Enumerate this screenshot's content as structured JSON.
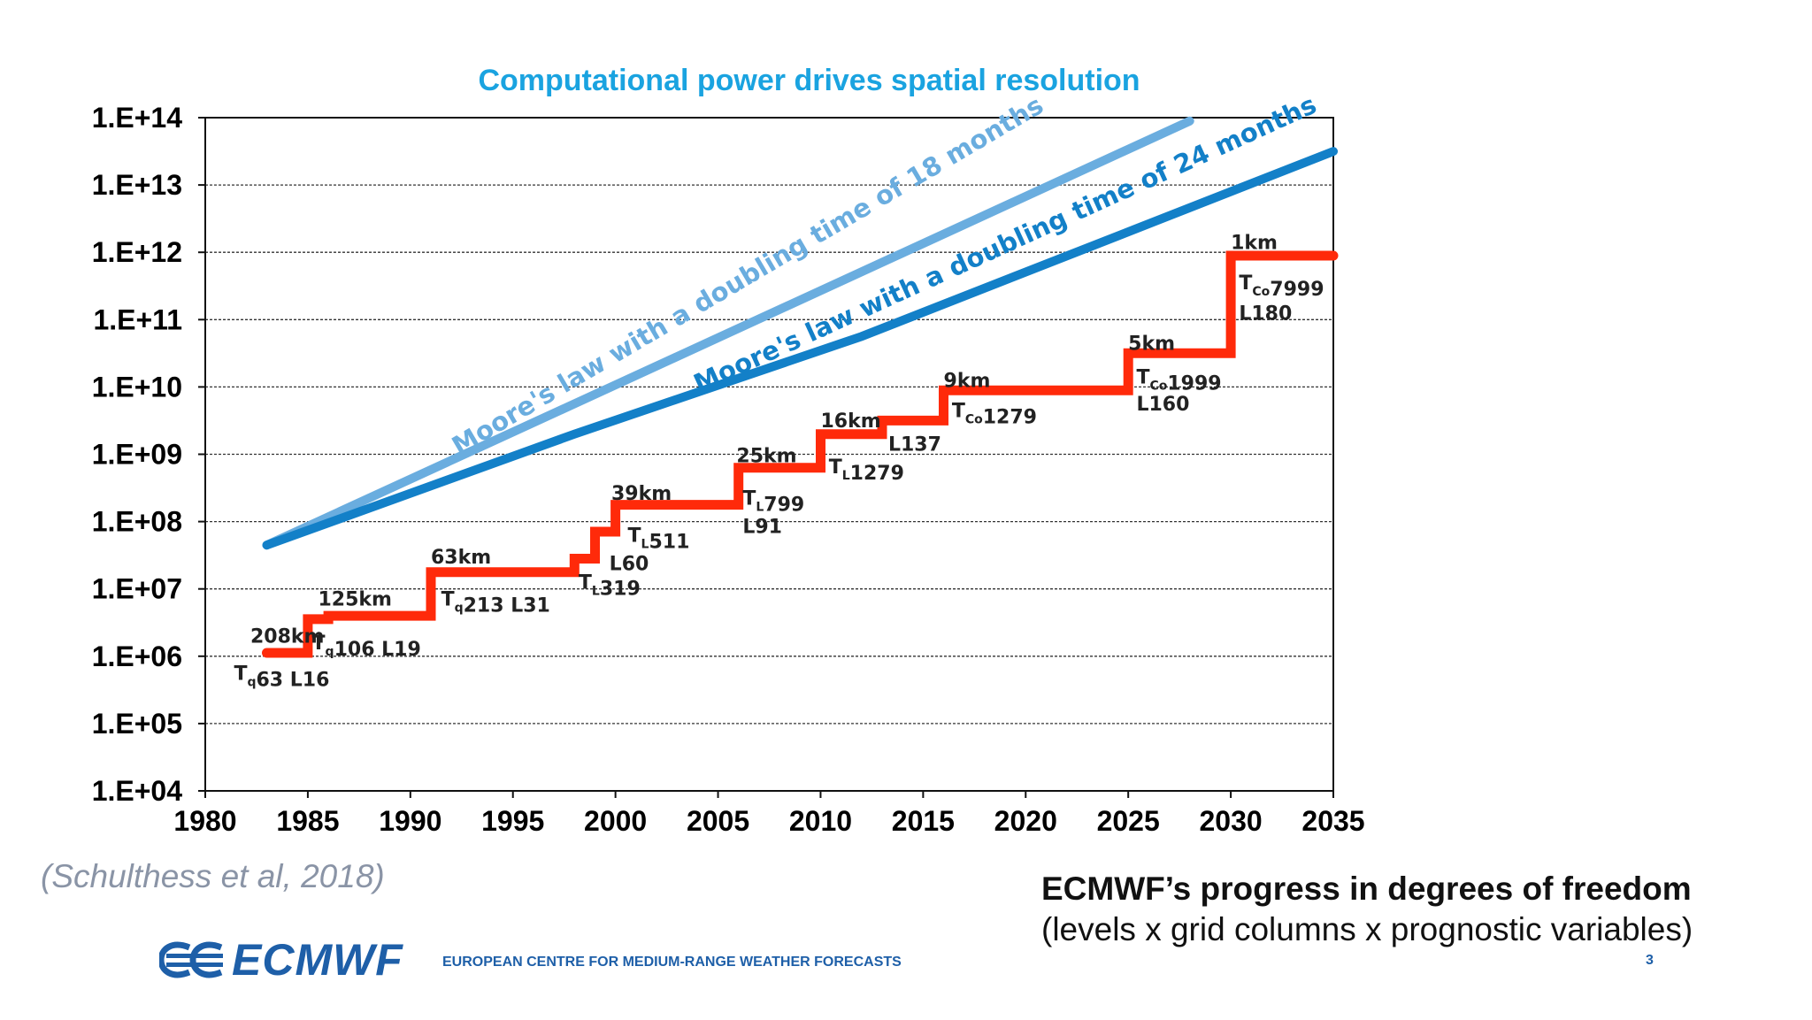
{
  "chart_data": {
    "type": "line",
    "title": "Computational power drives spatial resolution",
    "xlabel": "",
    "ylabel": "",
    "y_scale": "log10",
    "xlim": [
      1980,
      2035
    ],
    "ylim_exponent": [
      4,
      14
    ],
    "x_ticks": [
      "1980",
      "1985",
      "1990",
      "1995",
      "2000",
      "2005",
      "2010",
      "2015",
      "2020",
      "2025",
      "2030",
      "2035"
    ],
    "y_ticks": [
      "1.E+04",
      "1.E+05",
      "1.E+06",
      "1.E+07",
      "1.E+08",
      "1.E+09",
      "1.E+10",
      "1.E+11",
      "1.E+12",
      "1.E+13",
      "1.E+14"
    ],
    "grid": true,
    "series": [
      {
        "name": "Moore's law with a doubling time of 18 months",
        "color": "#6aaddf",
        "x": [
          1983,
          2028
        ],
        "log10_y": [
          7.65,
          13.95
        ]
      },
      {
        "name": "Moore's law with a doubling time of 24 months",
        "color": "#1380c8",
        "x": [
          1983,
          1998,
          2012,
          2035
        ],
        "log10_y": [
          7.65,
          9.3,
          10.75,
          13.5
        ]
      },
      {
        "name": "ECMWF degrees of freedom",
        "color": "#ff2a0a",
        "x": [
          1983,
          1985,
          1985,
          1986,
          1986,
          1991,
          1991,
          1998,
          1998,
          1999,
          1999,
          2000,
          2000,
          2006,
          2006,
          2010,
          2010,
          2013,
          2013,
          2016,
          2016,
          2025,
          2025,
          2030,
          2030,
          2035
        ],
        "log10_y": [
          6.05,
          6.05,
          6.55,
          6.55,
          6.6,
          6.6,
          7.25,
          7.25,
          7.45,
          7.45,
          7.85,
          7.85,
          8.25,
          8.25,
          8.8,
          8.8,
          9.3,
          9.3,
          9.5,
          9.5,
          9.95,
          9.95,
          10.5,
          10.5,
          11.95,
          11.95
        ]
      }
    ],
    "line_labels": [
      {
        "text": "Moore's law with a doubling time of 18 months",
        "color": "#6aaddf"
      },
      {
        "text": "Moore's law with a doubling time of 24 months",
        "color": "#1380c8"
      }
    ],
    "annotations": [
      {
        "x": 1982.2,
        "log10_y": 6.2,
        "parts": [
          {
            "t": "208km"
          }
        ]
      },
      {
        "x": 1981.4,
        "log10_y": 5.65,
        "parts": [
          {
            "t": "T"
          },
          {
            "t": "q",
            "sub": true
          },
          {
            "t": "63 L16"
          }
        ]
      },
      {
        "x": 1985.5,
        "log10_y": 6.75,
        "parts": [
          {
            "t": "125km"
          }
        ]
      },
      {
        "x": 1985.2,
        "log10_y": 6.1,
        "parts": [
          {
            "t": "T"
          },
          {
            "t": "q",
            "sub": true
          },
          {
            "t": "106 L19"
          }
        ]
      },
      {
        "x": 1991,
        "log10_y": 7.38,
        "parts": [
          {
            "t": "63km"
          }
        ]
      },
      {
        "x": 1991.5,
        "log10_y": 6.75,
        "parts": [
          {
            "t": "T"
          },
          {
            "t": "q",
            "sub": true
          },
          {
            "t": "213 L31"
          }
        ]
      },
      {
        "x": 1998.2,
        "log10_y": 7.0,
        "parts": [
          {
            "t": "T"
          },
          {
            "t": "L",
            "sub": true
          },
          {
            "t": "319"
          }
        ]
      },
      {
        "x": 1999.7,
        "log10_y": 7.28,
        "parts": [
          {
            "t": "L60"
          }
        ]
      },
      {
        "x": 2000.6,
        "log10_y": 7.7,
        "parts": [
          {
            "t": "T"
          },
          {
            "t": "L",
            "sub": true
          },
          {
            "t": "511"
          }
        ]
      },
      {
        "x": 1999.8,
        "log10_y": 8.32,
        "parts": [
          {
            "t": "39km"
          }
        ]
      },
      {
        "x": 2005.9,
        "log10_y": 8.88,
        "parts": [
          {
            "t": "25km"
          }
        ]
      },
      {
        "x": 2006.2,
        "log10_y": 8.25,
        "parts": [
          {
            "t": "T"
          },
          {
            "t": "L",
            "sub": true
          },
          {
            "t": "799"
          }
        ]
      },
      {
        "x": 2006.2,
        "log10_y": 7.83,
        "parts": [
          {
            "t": "L91"
          }
        ]
      },
      {
        "x": 2010,
        "log10_y": 9.4,
        "parts": [
          {
            "t": "16km"
          }
        ]
      },
      {
        "x": 2013.3,
        "log10_y": 9.05,
        "parts": [
          {
            "t": "L137"
          }
        ]
      },
      {
        "x": 2010.4,
        "log10_y": 8.72,
        "parts": [
          {
            "t": "T"
          },
          {
            "t": "L",
            "sub": true
          },
          {
            "t": "1279"
          }
        ]
      },
      {
        "x": 2016,
        "log10_y": 10.0,
        "parts": [
          {
            "t": "9km"
          }
        ]
      },
      {
        "x": 2016.4,
        "log10_y": 9.55,
        "parts": [
          {
            "t": "T"
          },
          {
            "t": "Co",
            "sub": true
          },
          {
            "t": "1279"
          }
        ]
      },
      {
        "x": 2025,
        "log10_y": 10.55,
        "parts": [
          {
            "t": "5km"
          }
        ]
      },
      {
        "x": 2025.4,
        "log10_y": 10.05,
        "parts": [
          {
            "t": "T"
          },
          {
            "t": "Co",
            "sub": true
          },
          {
            "t": "1999"
          }
        ]
      },
      {
        "x": 2025.4,
        "log10_y": 9.65,
        "parts": [
          {
            "t": "L160"
          }
        ]
      },
      {
        "x": 2030,
        "log10_y": 12.05,
        "parts": [
          {
            "t": "1km"
          }
        ]
      },
      {
        "x": 2030.4,
        "log10_y": 11.45,
        "parts": [
          {
            "t": "T"
          },
          {
            "t": "Co",
            "sub": true
          },
          {
            "t": "7999"
          }
        ]
      },
      {
        "x": 2030.4,
        "log10_y": 11.0,
        "parts": [
          {
            "t": "L180"
          }
        ]
      }
    ]
  },
  "citation": "(Schulthess et al, 2018)",
  "caption": {
    "title": "ECMWF’s progress in degrees of freedom",
    "subtitle": "(levels x grid columns x  prognostic variables)"
  },
  "footer": {
    "logo_text": "ECMWF",
    "org_name": "EUROPEAN CENTRE FOR MEDIUM-RANGE WEATHER FORECASTS",
    "page_number": "3"
  },
  "colors": {
    "title": "#1aa3e0",
    "brand": "#1e5fa8",
    "step_line": "#ff2a0a"
  }
}
